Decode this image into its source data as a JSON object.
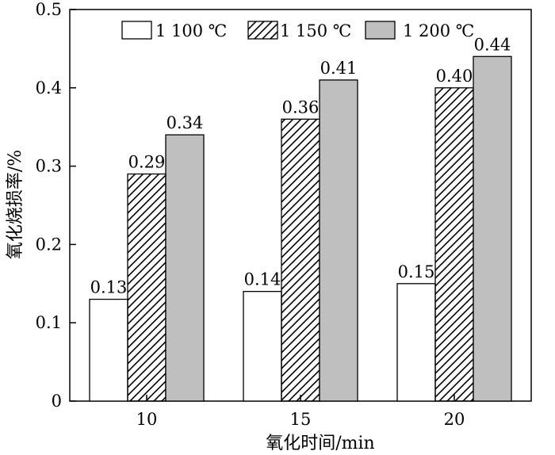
{
  "chart_data": {
    "type": "bar",
    "title": "",
    "xlabel": "氧化时间/min",
    "ylabel": "氧化烧损率/%",
    "categories": [
      "10",
      "15",
      "20"
    ],
    "series": [
      {
        "name": "1 100 ℃",
        "values": [
          0.13,
          0.14,
          0.15
        ],
        "labels": [
          "0.13",
          "0.14",
          "0.15"
        ],
        "fill": "white"
      },
      {
        "name": "1 150 ℃",
        "values": [
          0.29,
          0.36,
          0.4
        ],
        "labels": [
          "0.29",
          "0.36",
          "0.40"
        ],
        "fill": "hatch"
      },
      {
        "name": "1 200 ℃",
        "values": [
          0.34,
          0.41,
          0.44
        ],
        "labels": [
          "0.34",
          "0.41",
          "0.44"
        ],
        "fill": "gray"
      }
    ],
    "ylim": [
      0,
      0.5
    ],
    "yticks": [
      "0",
      "0.1",
      "0.2",
      "0.3",
      "0.4",
      "0.5"
    ],
    "legend_position": "top-right",
    "grid": false,
    "colors": {
      "gray": "#bfbfbf",
      "white": "#ffffff",
      "stroke": "#000000"
    }
  }
}
